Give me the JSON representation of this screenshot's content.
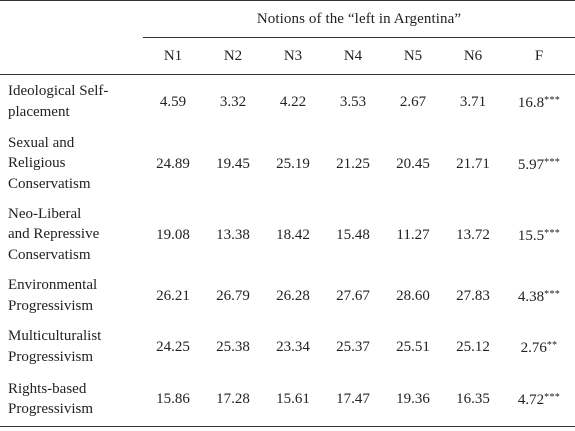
{
  "table": {
    "spanning_header": "Notions of the “left in Argentina”",
    "columns": [
      "N1",
      "N2",
      "N3",
      "N4",
      "N5",
      "N6",
      "F"
    ],
    "rows": [
      {
        "label_lines": [
          "Ideological Self-",
          "placement"
        ],
        "values": [
          "4.59",
          "3.32",
          "4.22",
          "3.53",
          "2.67",
          "3.71"
        ],
        "f": "16.8",
        "sig": "***"
      },
      {
        "label_lines": [
          "Sexual and",
          "Religious",
          "Conservatism"
        ],
        "values": [
          "24.89",
          "19.45",
          "25.19",
          "21.25",
          "20.45",
          "21.71"
        ],
        "f": "5.97",
        "sig": "***"
      },
      {
        "label_lines": [
          "Neo-Liberal",
          "and Repressive",
          "Conservatism"
        ],
        "values": [
          "19.08",
          "13.38",
          "18.42",
          "15.48",
          "11.27",
          "13.72"
        ],
        "f": "15.5",
        "sig": "***"
      },
      {
        "label_lines": [
          "Environmental",
          "Progressivism"
        ],
        "values": [
          "26.21",
          "26.79",
          "26.28",
          "27.67",
          "28.60",
          "27.83"
        ],
        "f": "4.38",
        "sig": "***"
      },
      {
        "label_lines": [
          "Multiculturalist",
          "Progressivism"
        ],
        "values": [
          "24.25",
          "25.38",
          "23.34",
          "25.37",
          "25.51",
          "25.12"
        ],
        "f": "2.76",
        "sig": "**"
      },
      {
        "label_lines": [
          "Rights-based",
          "Progressivism"
        ],
        "values": [
          "15.86",
          "17.28",
          "15.61",
          "17.47",
          "19.36",
          "16.35"
        ],
        "f": "4.72",
        "sig": "***"
      }
    ]
  }
}
